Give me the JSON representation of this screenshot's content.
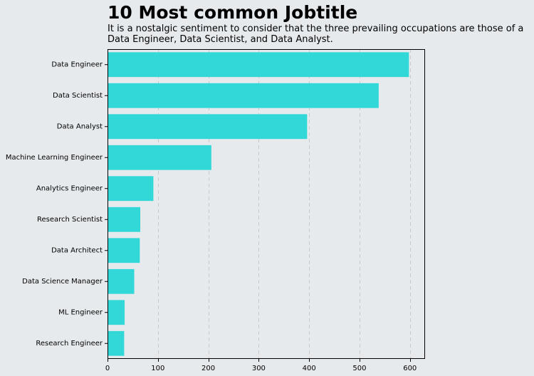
{
  "chart_data": {
    "type": "bar",
    "orientation": "horizontal",
    "title": "10 Most common Jobtitle",
    "subtitle": "It is a nostalgic sentiment to consider that the three prevailing occupations are those of a Data Engineer, Data Scientist, and Data Analyst.",
    "xlabel": "",
    "ylabel": "",
    "categories": [
      "Data Engineer",
      "Data Scientist",
      "Data Analyst",
      "Machine Learning Engineer",
      "Analytics Engineer",
      "Research Scientist",
      "Data Architect",
      "Data Science Manager",
      "ML Engineer",
      "Research Engineer"
    ],
    "values": [
      598,
      538,
      396,
      206,
      91,
      65,
      64,
      53,
      34,
      33
    ],
    "xlim": [
      0,
      630
    ],
    "xticks": [
      0,
      100,
      200,
      300,
      400,
      500,
      600
    ],
    "grid": "x-dashed",
    "legend": "none",
    "colors": {
      "bar": "#32d8d8",
      "background": "#e6eaed",
      "grid": "#c9c9c9",
      "axis": "#000000"
    }
  }
}
